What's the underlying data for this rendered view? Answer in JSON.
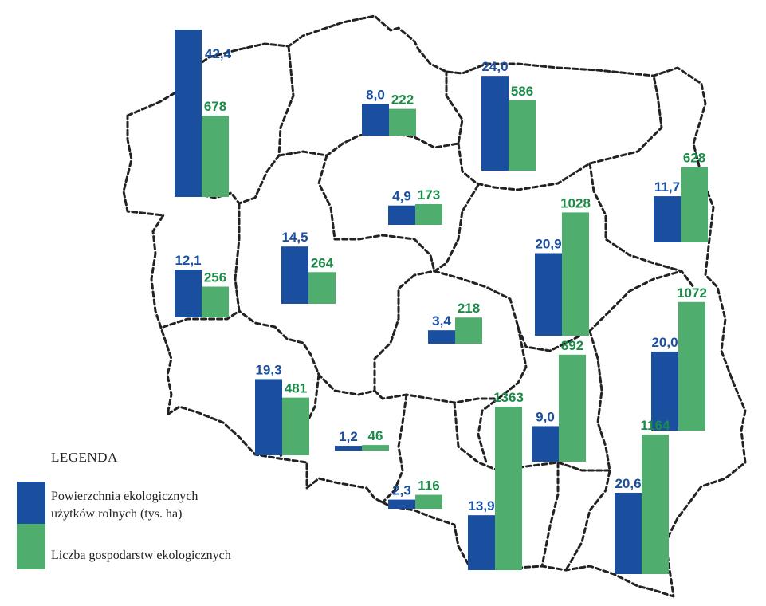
{
  "colors": {
    "area": "#1a4fa0",
    "farms": "#4fad6e",
    "area_text": "#1a4fa0",
    "farms_text": "#1b8c48"
  },
  "legend": {
    "title": "LEGENDA",
    "area_label_line1": "Powierzchnia ekologicznych",
    "area_label_line2": "użytków rolnych (tys. ha)",
    "farms_label": "Liczba gospodarstw ekologicznych"
  },
  "chart_data": {
    "type": "bar",
    "series": [
      {
        "name": "Powierzchnia ekologicznych użytków rolnych (tys. ha)",
        "key": "area"
      },
      {
        "name": "Liczba gospodarstw ekologicznych",
        "key": "farms"
      }
    ],
    "regions": [
      {
        "area": 42.4,
        "area_label": "42,4",
        "farms": 678,
        "farms_label": "678"
      },
      {
        "area": 8.0,
        "area_label": "8,0",
        "farms": 222,
        "farms_label": "222"
      },
      {
        "area": 24.0,
        "area_label": "24,0",
        "farms": 586,
        "farms_label": "586"
      },
      {
        "area": 11.7,
        "area_label": "11,7",
        "farms": 628,
        "farms_label": "628"
      },
      {
        "area": 12.1,
        "area_label": "12,1",
        "farms": 256,
        "farms_label": "256"
      },
      {
        "area": 14.5,
        "area_label": "14,5",
        "farms": 264,
        "farms_label": "264"
      },
      {
        "area": 4.9,
        "area_label": "4,9",
        "farms": 173,
        "farms_label": "173"
      },
      {
        "area": 20.9,
        "area_label": "20,9",
        "farms": 1028,
        "farms_label": "1028"
      },
      {
        "area": 3.4,
        "area_label": "3,4",
        "farms": 218,
        "farms_label": "218"
      },
      {
        "area": 20.0,
        "area_label": "20,0",
        "farms": 1072,
        "farms_label": "1072"
      },
      {
        "area": 19.3,
        "area_label": "19,3",
        "farms": 481,
        "farms_label": "481"
      },
      {
        "area": 9.0,
        "area_label": "9,0",
        "farms": 892,
        "farms_label": "892"
      },
      {
        "area": 1.2,
        "area_label": "1,2",
        "farms": 46,
        "farms_label": "46"
      },
      {
        "area": 13.9,
        "area_label": "13,9",
        "farms": 1363,
        "farms_label": "1363"
      },
      {
        "area": 2.3,
        "area_label": "2,3",
        "farms": 116,
        "farms_label": "116"
      },
      {
        "area": 20.6,
        "area_label": "20,6",
        "farms": 1164,
        "farms_label": "1164"
      }
    ]
  }
}
